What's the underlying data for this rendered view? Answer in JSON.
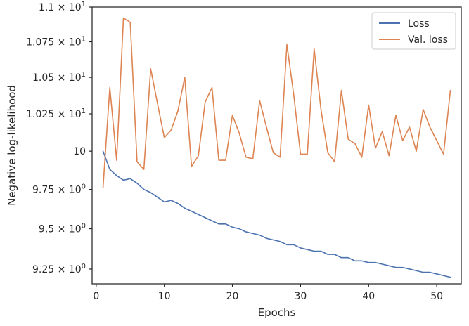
{
  "chart_data": {
    "type": "line",
    "xlabel": "Epochs",
    "ylabel": "Negative log-likelihood",
    "xlim": [
      -0.6,
      53.6
    ],
    "ylim": [
      9.16,
      11.0
    ],
    "yscale": "log",
    "grid": false,
    "legend_position": "top-right",
    "x_ticks": [
      {
        "value": 0,
        "label": "0"
      },
      {
        "value": 10,
        "label": "10"
      },
      {
        "value": 20,
        "label": "20"
      },
      {
        "value": 30,
        "label": "30"
      },
      {
        "value": 40,
        "label": "40"
      },
      {
        "value": 50,
        "label": "50"
      }
    ],
    "y_ticks": [
      {
        "value": 9.25,
        "base": "9.25",
        "mult": "×",
        "pow": "10",
        "exp": "0",
        "plain": ""
      },
      {
        "value": 9.5,
        "base": "9.5",
        "mult": "×",
        "pow": "10",
        "exp": "0",
        "plain": ""
      },
      {
        "value": 9.75,
        "base": "9.75",
        "mult": "×",
        "pow": "10",
        "exp": "0",
        "plain": ""
      },
      {
        "value": 10.0,
        "base": "",
        "mult": "",
        "pow": "",
        "exp": "",
        "plain": "10"
      },
      {
        "value": 10.25,
        "base": "1.025",
        "mult": "×",
        "pow": "10",
        "exp": "1",
        "plain": ""
      },
      {
        "value": 10.5,
        "base": "1.05",
        "mult": "×",
        "pow": "10",
        "exp": "1",
        "plain": ""
      },
      {
        "value": 10.75,
        "base": "1.075",
        "mult": "×",
        "pow": "10",
        "exp": "1",
        "plain": ""
      },
      {
        "value": 11.0,
        "base": "1.1",
        "mult": "×",
        "pow": "10",
        "exp": "1",
        "plain": ""
      }
    ],
    "x": [
      1,
      2,
      3,
      4,
      5,
      6,
      7,
      8,
      9,
      10,
      11,
      12,
      13,
      14,
      15,
      16,
      17,
      18,
      19,
      20,
      21,
      22,
      23,
      24,
      25,
      26,
      27,
      28,
      29,
      30,
      31,
      32,
      33,
      34,
      35,
      36,
      37,
      38,
      39,
      40,
      41,
      42,
      43,
      44,
      45,
      46,
      47,
      48,
      49,
      50,
      51,
      52
    ],
    "series": [
      {
        "name": "Loss",
        "color": "#4c72b0",
        "values": [
          10.0,
          9.88,
          9.84,
          9.81,
          9.82,
          9.79,
          9.75,
          9.73,
          9.7,
          9.67,
          9.68,
          9.66,
          9.63,
          9.61,
          9.59,
          9.57,
          9.55,
          9.53,
          9.53,
          9.51,
          9.5,
          9.48,
          9.47,
          9.46,
          9.44,
          9.43,
          9.42,
          9.4,
          9.4,
          9.38,
          9.37,
          9.36,
          9.36,
          9.34,
          9.34,
          9.32,
          9.32,
          9.3,
          9.3,
          9.29,
          9.29,
          9.28,
          9.27,
          9.26,
          9.26,
          9.25,
          9.24,
          9.23,
          9.23,
          9.22,
          9.21,
          9.2
        ]
      },
      {
        "name": "Val. loss",
        "color": "#dd8452",
        "values": [
          9.76,
          10.43,
          9.94,
          10.92,
          10.89,
          9.93,
          9.88,
          10.56,
          10.32,
          10.09,
          10.14,
          10.27,
          10.5,
          9.9,
          9.97,
          10.33,
          10.43,
          9.94,
          9.94,
          10.24,
          10.12,
          9.96,
          9.95,
          10.34,
          10.16,
          9.99,
          9.96,
          10.73,
          10.38,
          9.98,
          9.98,
          10.7,
          10.28,
          9.99,
          9.93,
          10.41,
          10.08,
          10.05,
          9.96,
          10.31,
          10.02,
          10.13,
          9.97,
          10.24,
          10.07,
          10.16,
          10.0,
          10.28,
          10.16,
          10.07,
          9.98,
          10.41
        ]
      }
    ]
  }
}
